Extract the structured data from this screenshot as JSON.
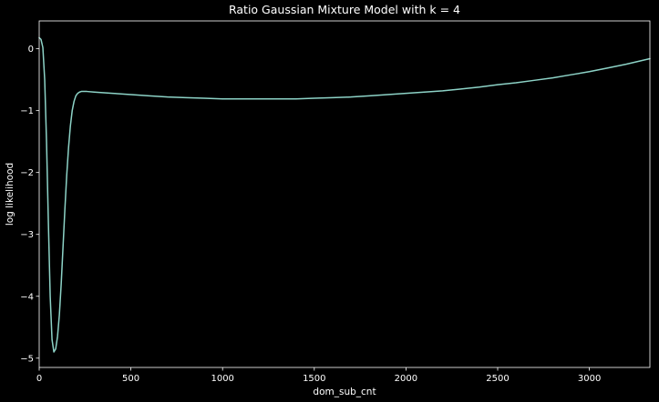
{
  "chart_data": {
    "type": "line",
    "title": "Ratio Gaussian Mixture Model with k = 4",
    "xlabel": "dom_sub_cnt",
    "ylabel": "log likelihood",
    "xlim": [
      0,
      3330
    ],
    "ylim": [
      -5.15,
      0.45
    ],
    "xticks": [
      0,
      500,
      1000,
      1500,
      2000,
      2500,
      3000
    ],
    "yticks": [
      0,
      -1,
      -2,
      -3,
      -4,
      -5
    ],
    "grid": false,
    "background": "#000000",
    "foreground": "#ffffff",
    "series": [
      {
        "color": "#8dd3c7",
        "x": [
          0,
          10,
          20,
          30,
          40,
          50,
          60,
          70,
          80,
          90,
          100,
          110,
          120,
          130,
          140,
          150,
          160,
          170,
          180,
          190,
          200,
          210,
          220,
          230,
          240,
          250,
          260,
          300,
          400,
          500,
          600,
          700,
          800,
          900,
          1000,
          1100,
          1200,
          1300,
          1400,
          1500,
          1600,
          1700,
          1800,
          1900,
          2000,
          2100,
          2200,
          2300,
          2400,
          2500,
          2600,
          2700,
          2800,
          2900,
          3000,
          3100,
          3200,
          3330
        ],
        "y": [
          0.18,
          0.15,
          0.02,
          -0.5,
          -1.5,
          -2.8,
          -4.0,
          -4.7,
          -4.9,
          -4.85,
          -4.65,
          -4.3,
          -3.8,
          -3.2,
          -2.6,
          -2.05,
          -1.6,
          -1.25,
          -1.0,
          -0.85,
          -0.76,
          -0.72,
          -0.7,
          -0.69,
          -0.69,
          -0.69,
          -0.69,
          -0.7,
          -0.72,
          -0.74,
          -0.76,
          -0.78,
          -0.79,
          -0.8,
          -0.81,
          -0.81,
          -0.81,
          -0.81,
          -0.81,
          -0.8,
          -0.79,
          -0.78,
          -0.76,
          -0.74,
          -0.72,
          -0.7,
          -0.68,
          -0.65,
          -0.62,
          -0.58,
          -0.55,
          -0.51,
          -0.47,
          -0.42,
          -0.37,
          -0.31,
          -0.25,
          -0.16
        ]
      }
    ]
  }
}
